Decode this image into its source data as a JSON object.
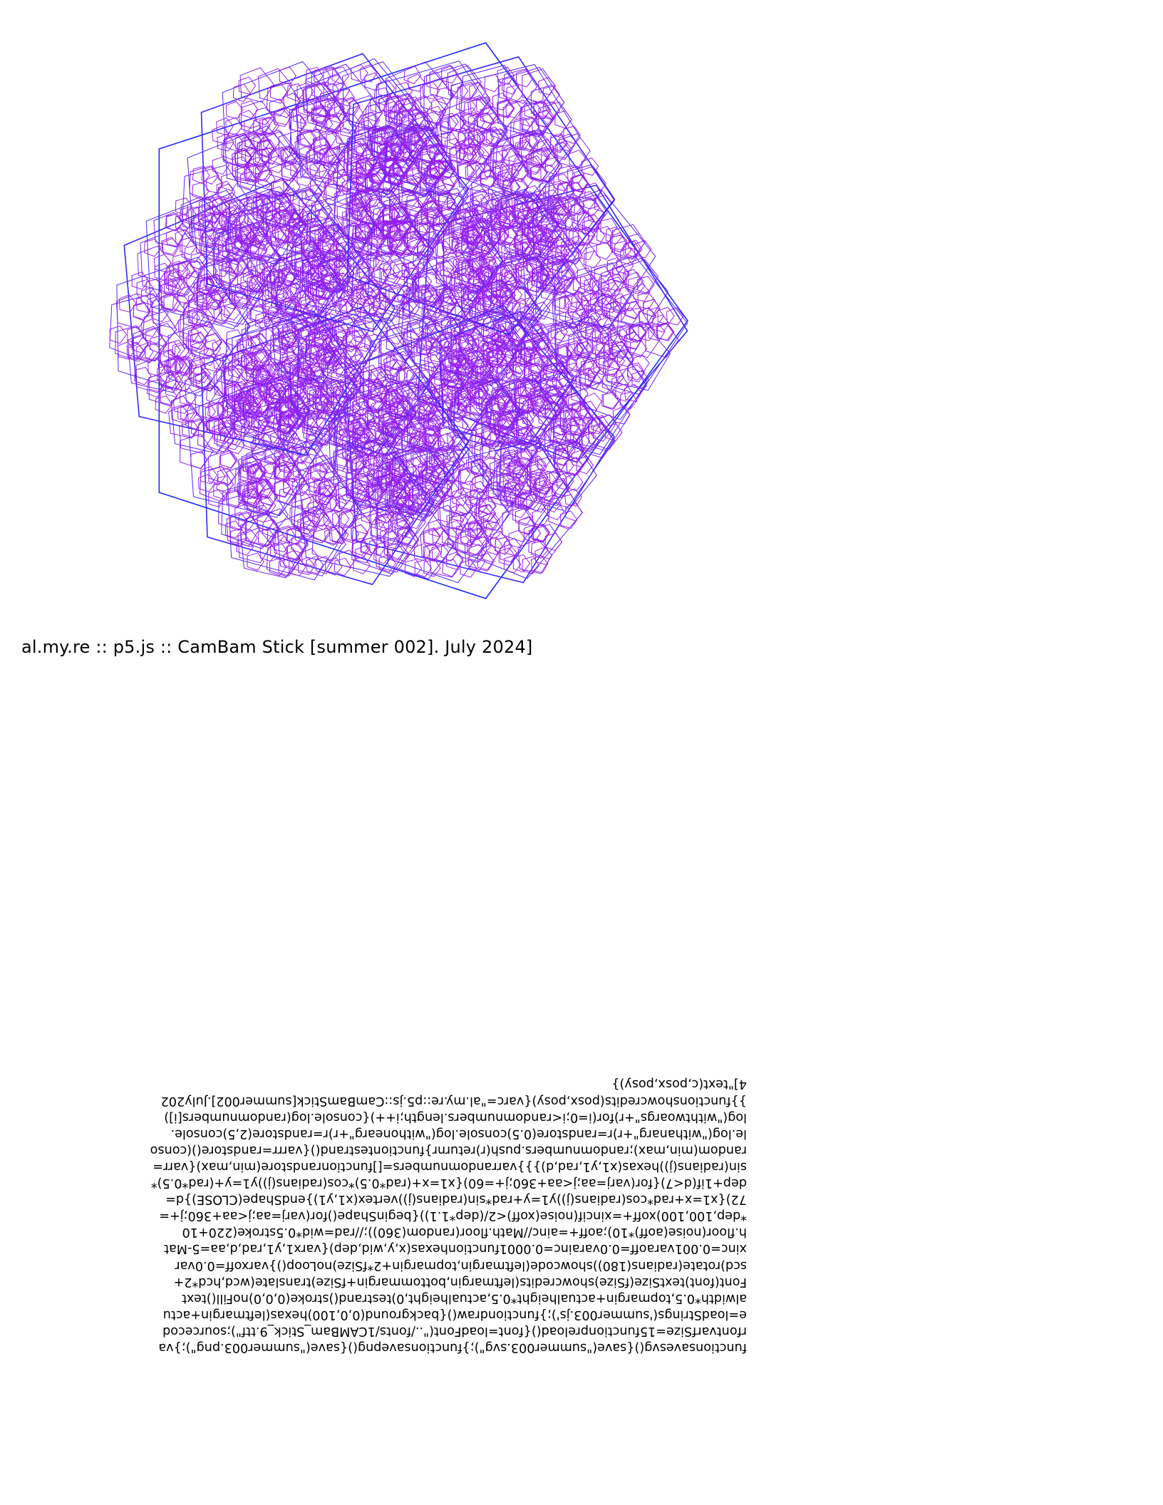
{
  "caption": "al.my.re :: p5.js :: CamBam Stick [summer 002]. July 2024]",
  "colors": {
    "background": "#ffffff",
    "outer_stroke": "#1a2cff",
    "inner_stroke": "#9a1ff0"
  },
  "code_lines": [
    "functionsavesvg(){save(\"summer003.svg\");}functionsavepng(){save(\"summer003.png\");}va",
    "rfontvarfSize=15functionpreload(){font=loadFont(\"../fonts/1CAMBam_Stick_9.ttf\");sourcecod",
    "e=loadStrings('summer003.js');}functiondraw(){background(0,0,100)hexas(leftmargin+actu",
    "alwidth*0.5,topmargin+actualheight*0.5,actualheight,0)testrand()stroke(0,0,0)noFill()text",
    "Font(font)textSize(fSize)showcredits(leftmargin,bottommargin+fSize)translate(wcd,hcd*2+",
    "scd)rotate(radians(180))showcode(leftmargin,topmargin+2*fSize)noLoop()}varxoff=0.0var",
    "xinc=0.001varaoff=0.0varainc=0.0001functionhexas(x,y,wid,dep){varx1,y1,rad,d,aa=5-Mat",
    "h.floor(noise(aoff)*10);aoff+=ainc//Math.floor(random(360));//rad=wid*0.5stroke(220+10",
    "*dep,100,100)xoff+=xincif(noise(xoff)<2/(dep*1.1)){beginShape()for(varj=aa;j<aa+360;j+=",
    "72){x1=x+rad*cos(radians(j))y1=y+rad*sin(radians(j))vertex(x1,y1)}endShape(CLOSE)}d=",
    "dep+1if(d<7){for(varj=aa;j<aa+360;j+=60){x1=x+(rad*0.5)*cos(radians(j))y1=y+(rad*0.5)*",
    "sin(radians(j))hexas(x1,y1,rad,d)}}}varrandomnumbers=[]functionrandstore(min,max){varr=",
    "random(min,max);randomnumbers.push(r)returnr}functiontestrand(){varrr=randstore()(conso",
    "le.log(\"withanarg\"+r)r=randstore(0.5)console.log(\"withonearg\"+r)r=randstore(2,5)console.",
    "log(\"withtwoargs\"+r)for(i=0;i<randomnumbers.length;i++){console.log(randomnumbers[i])",
    "}}functionshowcredits(posx,posy){varc=\"al.my.re::p5.js::CamBamStick[summer002].July202",
    "4]\"text(c,posx,posy)}"
  ]
}
